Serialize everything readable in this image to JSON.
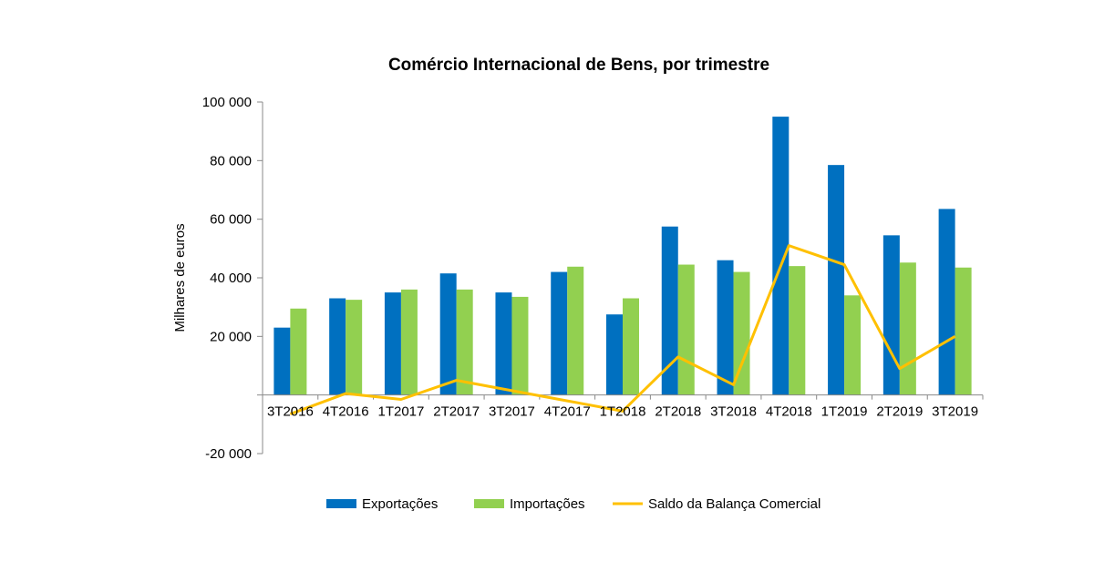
{
  "chart_data": {
    "type": "bar",
    "title": "Comércio Internacional de Bens, por trimestre",
    "ylabel": "Milhares de euros",
    "xlabel": "",
    "ylim": [
      -20000,
      100000
    ],
    "yticks": [
      -20000,
      0,
      20000,
      40000,
      60000,
      80000,
      100000
    ],
    "ytick_labels": [
      "-20 000",
      "",
      "20 000",
      "40 000",
      "60 000",
      "80 000",
      "100 000"
    ],
    "categories": [
      "3T2016",
      "4T2016",
      "1T2017",
      "2T2017",
      "3T2017",
      "4T2017",
      "1T2018",
      "2T2018",
      "3T2018",
      "4T2018",
      "1T2019",
      "2T2019",
      "3T2019"
    ],
    "series": [
      {
        "name": "Exportações",
        "type": "bar",
        "color": "#0070C0",
        "values": [
          23000,
          33000,
          35000,
          41500,
          35000,
          42000,
          27500,
          57500,
          46000,
          95000,
          78500,
          54500,
          63500
        ]
      },
      {
        "name": "Importações",
        "type": "bar",
        "color": "#92D050",
        "values": [
          29500,
          32500,
          36000,
          36000,
          33500,
          43800,
          33000,
          44500,
          42000,
          44000,
          34000,
          45200,
          43500
        ]
      },
      {
        "name": "Saldo da Balança Comercial",
        "type": "line",
        "color": "#FFC000",
        "values": [
          -6500,
          500,
          -1500,
          5000,
          1500,
          -2000,
          -5500,
          13000,
          3500,
          51000,
          44500,
          9000,
          20000
        ]
      }
    ],
    "grid": false,
    "legend_position": "bottom"
  }
}
